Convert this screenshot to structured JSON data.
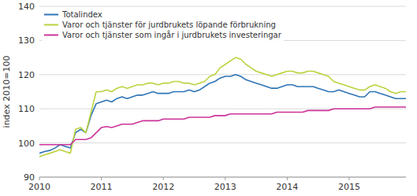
{
  "chart_data": {
    "type": "line",
    "ylabel": "index 2010=100",
    "categories": [
      "2010",
      null,
      null,
      null,
      null,
      null,
      null,
      null,
      null,
      null,
      null,
      null,
      "2011",
      null,
      null,
      null,
      null,
      null,
      null,
      null,
      null,
      null,
      null,
      null,
      "2012",
      null,
      null,
      null,
      null,
      null,
      null,
      null,
      null,
      null,
      null,
      null,
      "2013",
      null,
      null,
      null,
      null,
      null,
      null,
      null,
      null,
      null,
      null,
      null,
      "2014",
      null,
      null,
      null,
      null,
      null,
      null,
      null,
      null,
      null,
      null,
      null,
      "2015",
      null,
      null,
      null,
      null,
      null,
      null,
      null,
      null,
      null,
      null,
      null
    ],
    "series": [
      {
        "name": "Totalindex",
        "color": "#2e75b6",
        "values": [
          97,
          97.5,
          97.8,
          98.5,
          99.5,
          99.0,
          98.5,
          103,
          104,
          103,
          108,
          111.5,
          112,
          112.5,
          112,
          113,
          113.5,
          113,
          113.5,
          114,
          114,
          114.5,
          115,
          114.5,
          114.5,
          114.5,
          115,
          115,
          115,
          115.5,
          115,
          115.5,
          116.5,
          117.5,
          118,
          119,
          119.5,
          119.5,
          120,
          119.5,
          118.5,
          118,
          117.5,
          117,
          116.5,
          116,
          116,
          116.5,
          117,
          117,
          116.5,
          116.5,
          116.5,
          116.5,
          116,
          115.5,
          115,
          115,
          115.5,
          115,
          114.5,
          114,
          113.5,
          113.5,
          115,
          115,
          114.5,
          114,
          113.5,
          113,
          113,
          113
        ]
      },
      {
        "name": "Varor och tjänster för jurdbrukets löpande förbrukning",
        "color": "#bdd23f",
        "values": [
          96,
          96.5,
          97,
          97.5,
          98,
          97.5,
          97,
          104,
          104.5,
          103,
          109,
          115,
          115,
          115.5,
          115,
          116,
          116.5,
          116,
          116.5,
          117,
          117,
          117.5,
          117.5,
          117,
          117.5,
          117.5,
          118,
          118,
          117.5,
          117.5,
          117,
          117.5,
          118,
          119.5,
          120,
          122,
          123,
          124,
          125,
          124.5,
          123,
          122,
          121,
          120.5,
          120,
          119.5,
          120,
          120.5,
          121,
          121,
          120.5,
          120.5,
          121,
          121,
          120.5,
          120,
          119.5,
          118,
          117.5,
          117,
          116.5,
          116,
          115.5,
          115.5,
          116.5,
          117,
          116.5,
          116,
          115,
          114.5,
          115,
          115
        ]
      },
      {
        "name": "Varor och tjänster som ingår i jurdbrukets investeringar",
        "color": "#cc3399",
        "values": [
          99.5,
          99.5,
          99.5,
          99.5,
          99.5,
          99.5,
          99.5,
          101,
          101,
          101,
          101.5,
          103,
          104.5,
          104.8,
          104.5,
          105,
          105.5,
          105.5,
          105.5,
          106,
          106.5,
          106.5,
          106.5,
          106.5,
          107,
          107,
          107,
          107,
          107,
          107.5,
          107.5,
          107.5,
          107.5,
          107.5,
          108,
          108,
          108,
          108.5,
          108.5,
          108.5,
          108.5,
          108.5,
          108.5,
          108.5,
          108.5,
          108.5,
          109,
          109,
          109,
          109,
          109,
          109,
          109.5,
          109.5,
          109.5,
          109.5,
          109.5,
          110,
          110,
          110,
          110,
          110,
          110,
          110,
          110,
          110.5,
          110.5,
          110.5,
          110.5,
          110.5,
          110.5,
          110.5
        ]
      }
    ],
    "ylim": [
      90,
      140
    ],
    "yticks": [
      90,
      100,
      110,
      120,
      130,
      140
    ],
    "grid": true,
    "legend": "upper left"
  }
}
